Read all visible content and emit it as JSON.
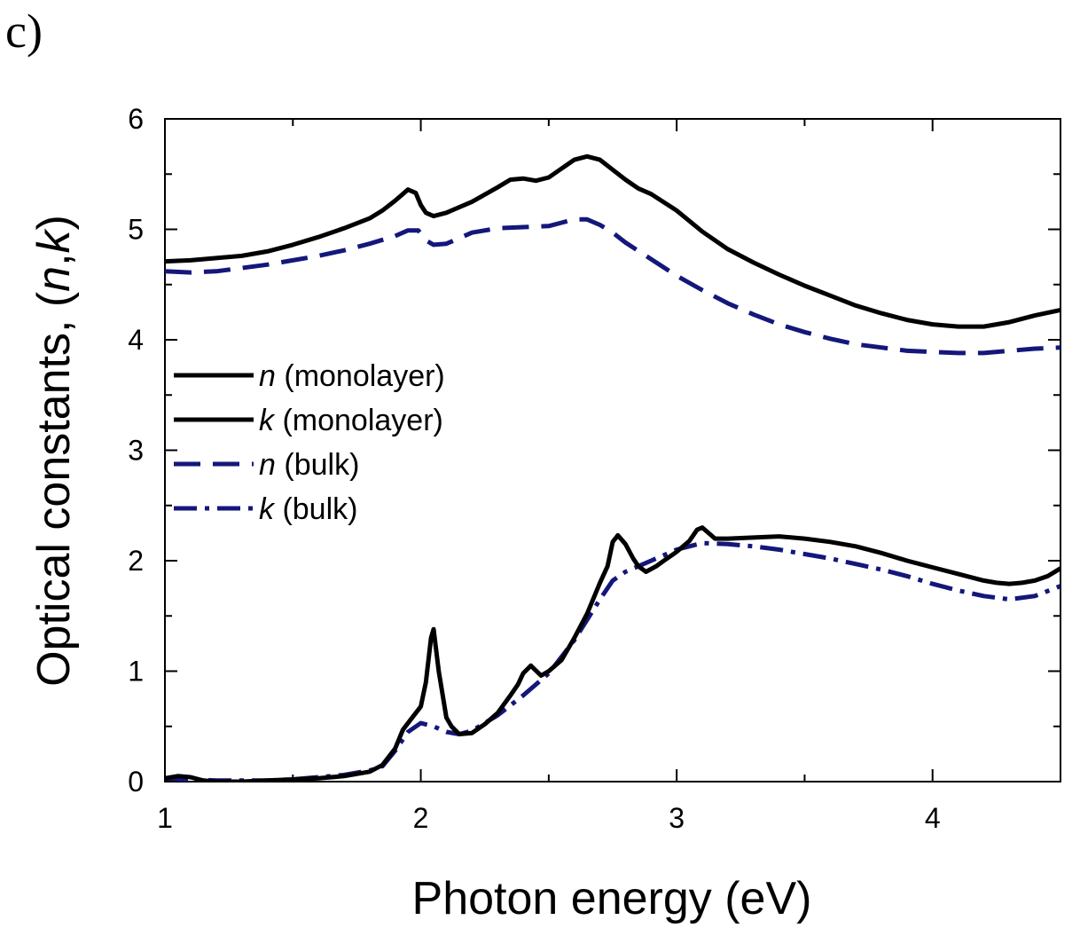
{
  "panel_label": "c)",
  "chart_data": {
    "type": "line",
    "title": "",
    "xlabel": "Photon energy (eV)",
    "ylabel_prefix": "Optical constants, ",
    "ylabel_open": "(",
    "ylabel_n": "n",
    "ylabel_comma": ",",
    "ylabel_k": "k",
    "ylabel_close": ")",
    "xlim": [
      1,
      4.5
    ],
    "ylim": [
      0,
      6
    ],
    "xticks": [
      1,
      2,
      3,
      4
    ],
    "yticks": [
      0,
      1,
      2,
      3,
      4,
      5,
      6
    ],
    "xtick_labels": [
      "1",
      "2",
      "3",
      "4"
    ],
    "ytick_labels": [
      "0",
      "1",
      "2",
      "3",
      "4",
      "5",
      "6"
    ],
    "grid": false,
    "legend_position": "center-left",
    "series": [
      {
        "name": "n (monolayer)",
        "legend_sym": "n",
        "legend_rest": " (monolayer)",
        "color": "#000000",
        "style": "solid",
        "x": [
          1.0,
          1.1,
          1.2,
          1.3,
          1.4,
          1.5,
          1.6,
          1.7,
          1.8,
          1.85,
          1.9,
          1.95,
          1.98,
          2.0,
          2.02,
          2.05,
          2.1,
          2.2,
          2.3,
          2.35,
          2.4,
          2.45,
          2.5,
          2.55,
          2.6,
          2.65,
          2.7,
          2.75,
          2.8,
          2.85,
          2.9,
          3.0,
          3.1,
          3.2,
          3.3,
          3.4,
          3.5,
          3.6,
          3.7,
          3.8,
          3.9,
          4.0,
          4.1,
          4.2,
          4.3,
          4.4,
          4.5
        ],
        "y": [
          4.71,
          4.72,
          4.74,
          4.76,
          4.8,
          4.86,
          4.93,
          5.01,
          5.1,
          5.17,
          5.26,
          5.36,
          5.33,
          5.22,
          5.15,
          5.12,
          5.15,
          5.25,
          5.38,
          5.45,
          5.46,
          5.44,
          5.47,
          5.55,
          5.63,
          5.66,
          5.63,
          5.54,
          5.45,
          5.37,
          5.32,
          5.17,
          4.98,
          4.82,
          4.7,
          4.59,
          4.49,
          4.4,
          4.31,
          4.24,
          4.18,
          4.14,
          4.12,
          4.12,
          4.16,
          4.22,
          4.27
        ]
      },
      {
        "name": "k (monolayer)",
        "legend_sym": "k",
        "legend_rest": " (monolayer)",
        "color": "#000000",
        "style": "solid",
        "x": [
          1.0,
          1.05,
          1.1,
          1.15,
          1.2,
          1.3,
          1.4,
          1.5,
          1.6,
          1.7,
          1.8,
          1.85,
          1.9,
          1.93,
          1.96,
          2.0,
          2.02,
          2.04,
          2.05,
          2.07,
          2.1,
          2.12,
          2.15,
          2.2,
          2.25,
          2.3,
          2.35,
          2.38,
          2.4,
          2.43,
          2.47,
          2.5,
          2.55,
          2.6,
          2.65,
          2.7,
          2.73,
          2.75,
          2.77,
          2.8,
          2.83,
          2.85,
          2.88,
          2.92,
          2.95,
          3.0,
          3.05,
          3.08,
          3.1,
          3.12,
          3.15,
          3.2,
          3.3,
          3.4,
          3.5,
          3.6,
          3.7,
          3.8,
          3.9,
          4.0,
          4.1,
          4.2,
          4.25,
          4.3,
          4.35,
          4.4,
          4.45,
          4.5
        ],
        "y": [
          0.03,
          0.05,
          0.04,
          0.01,
          0.0,
          0.0,
          0.01,
          0.02,
          0.03,
          0.05,
          0.09,
          0.15,
          0.3,
          0.47,
          0.56,
          0.68,
          0.9,
          1.3,
          1.38,
          1.0,
          0.58,
          0.5,
          0.43,
          0.44,
          0.52,
          0.62,
          0.78,
          0.88,
          0.98,
          1.05,
          0.96,
          1.0,
          1.1,
          1.3,
          1.52,
          1.8,
          1.95,
          2.17,
          2.23,
          2.15,
          2.02,
          1.95,
          1.9,
          1.95,
          2.0,
          2.08,
          2.18,
          2.28,
          2.3,
          2.26,
          2.2,
          2.2,
          2.21,
          2.22,
          2.2,
          2.17,
          2.13,
          2.07,
          2.0,
          1.94,
          1.88,
          1.82,
          1.8,
          1.79,
          1.8,
          1.82,
          1.86,
          1.93
        ]
      },
      {
        "name": "n (bulk)",
        "legend_sym": "n",
        "legend_rest": " (bulk)",
        "color": "#14177a",
        "style": "dashed",
        "x": [
          1.0,
          1.1,
          1.2,
          1.3,
          1.4,
          1.5,
          1.6,
          1.7,
          1.8,
          1.9,
          1.95,
          1.99,
          2.02,
          2.05,
          2.1,
          2.15,
          2.2,
          2.3,
          2.4,
          2.5,
          2.55,
          2.6,
          2.65,
          2.7,
          2.75,
          2.8,
          2.9,
          3.0,
          3.1,
          3.2,
          3.3,
          3.4,
          3.5,
          3.6,
          3.7,
          3.8,
          3.9,
          4.0,
          4.1,
          4.2,
          4.3,
          4.4,
          4.5
        ],
        "y": [
          4.62,
          4.61,
          4.62,
          4.65,
          4.68,
          4.72,
          4.76,
          4.81,
          4.87,
          4.94,
          4.99,
          4.99,
          4.9,
          4.86,
          4.87,
          4.92,
          4.97,
          5.01,
          5.02,
          5.03,
          5.06,
          5.09,
          5.09,
          5.04,
          4.97,
          4.88,
          4.73,
          4.58,
          4.45,
          4.33,
          4.23,
          4.14,
          4.07,
          4.01,
          3.96,
          3.93,
          3.9,
          3.89,
          3.88,
          3.88,
          3.9,
          3.92,
          3.93
        ]
      },
      {
        "name": "k (bulk)",
        "legend_sym": "k",
        "legend_rest": " (bulk)",
        "color": "#14177a",
        "style": "dashdot",
        "x": [
          1.0,
          1.1,
          1.2,
          1.3,
          1.4,
          1.5,
          1.6,
          1.7,
          1.8,
          1.85,
          1.9,
          1.95,
          2.0,
          2.05,
          2.1,
          2.15,
          2.2,
          2.3,
          2.4,
          2.5,
          2.6,
          2.7,
          2.75,
          2.8,
          2.9,
          3.0,
          3.1,
          3.2,
          3.3,
          3.4,
          3.5,
          3.6,
          3.7,
          3.8,
          3.9,
          4.0,
          4.1,
          4.2,
          4.3,
          4.4,
          4.5
        ],
        "y": [
          0.02,
          0.02,
          0.01,
          0.01,
          0.01,
          0.02,
          0.04,
          0.06,
          0.1,
          0.14,
          0.28,
          0.45,
          0.53,
          0.5,
          0.45,
          0.43,
          0.46,
          0.6,
          0.78,
          0.98,
          1.28,
          1.65,
          1.82,
          1.9,
          2.0,
          2.1,
          2.16,
          2.15,
          2.13,
          2.1,
          2.06,
          2.02,
          1.97,
          1.92,
          1.86,
          1.79,
          1.73,
          1.68,
          1.65,
          1.68,
          1.77
        ]
      }
    ]
  }
}
